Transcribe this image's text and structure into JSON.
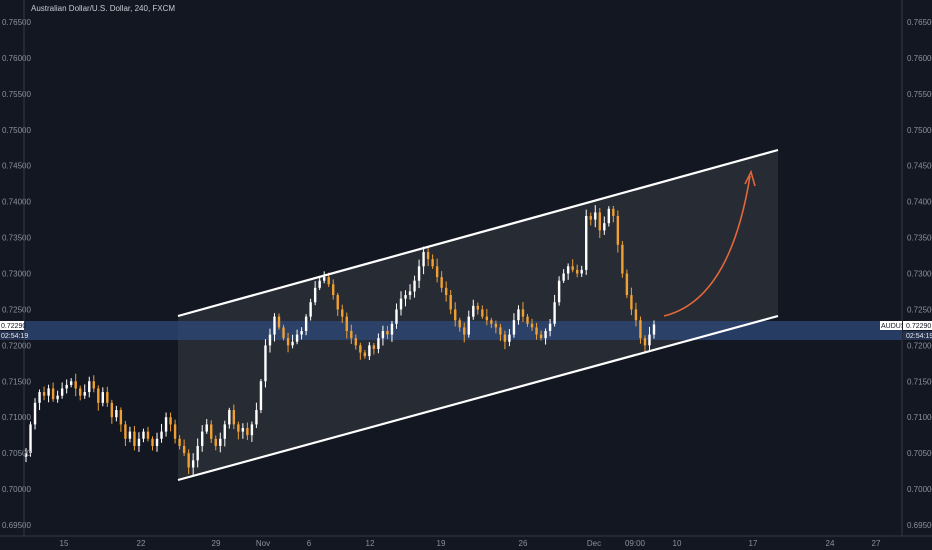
{
  "chart_data": {
    "type": "candlestick",
    "title": "Australian Dollar/U.S. Dollar, 240, FXCM",
    "symbol": "AUDUSD",
    "current_price": "0.72290",
    "countdown": "02:54:19",
    "y_ticks": [
      "0.76500",
      "0.76000",
      "0.75500",
      "0.75000",
      "0.74500",
      "0.74000",
      "0.73500",
      "0.73000",
      "0.72500",
      "0.72000",
      "0.71500",
      "0.71000",
      "0.70500",
      "0.70000",
      "0.69500"
    ],
    "ylim": [
      0.695,
      0.765
    ],
    "x_ticks": [
      "15",
      "22",
      "29",
      "Nov",
      "6",
      "12",
      "19",
      "26",
      "Dec",
      "09:00",
      "10",
      "17",
      "24",
      "27"
    ],
    "grid": false,
    "colors": {
      "background": "#131722",
      "up": "#ffffff",
      "down": "#f0a033",
      "channel_line": "#ffffff",
      "channel_fill": "#2a2d36",
      "highlight_band": "#2f4a7a",
      "arrow": "#e2673a",
      "axis_text": "#8c909b"
    },
    "price_path": [
      [
        0.705,
        0.709,
        0.712,
        0.7135,
        0.713,
        0.714,
        0.7125,
        0.713,
        0.714,
        0.7145,
        0.715,
        0.714,
        0.713,
        0.7135,
        0.715,
        0.714,
        0.712,
        0.7135,
        0.712,
        0.71,
        0.711,
        0.709,
        0.707,
        0.708,
        0.706,
        0.707,
        0.708,
        0.707,
        0.706,
        0.707
      ],
      [
        0.708,
        0.71,
        0.709,
        0.707,
        0.706,
        0.705,
        0.703,
        0.704,
        0.706,
        0.708,
        0.709,
        0.707,
        0.706,
        0.707,
        0.709,
        0.711,
        0.709,
        0.708,
        0.7085,
        0.7075,
        0.709,
        0.711,
        0.715,
        0.72,
        0.7215,
        0.724,
        0.7225,
        0.721,
        0.72,
        0.7205
      ],
      [
        0.7215,
        0.722,
        0.724,
        0.726,
        0.728,
        0.729,
        0.7295,
        0.7285,
        0.727,
        0.725,
        0.724,
        0.722,
        0.721,
        0.72,
        0.719,
        0.7185,
        0.72,
        0.7195,
        0.721,
        0.722,
        0.7215,
        0.723,
        0.725,
        0.7265,
        0.727,
        0.7275,
        0.729,
        0.731,
        0.733,
        0.732
      ],
      [
        0.731,
        0.7295,
        0.728,
        0.727,
        0.725,
        0.7235,
        0.7225,
        0.7215,
        0.724,
        0.7255,
        0.725,
        0.724,
        0.7235,
        0.723,
        0.7225,
        0.7215,
        0.7205,
        0.7215,
        0.7235,
        0.725,
        0.724,
        0.723,
        0.7225,
        0.7215,
        0.721,
        0.722,
        0.723,
        0.726,
        0.729,
        0.73
      ],
      [
        0.731,
        0.7305,
        0.73,
        0.7305,
        0.738,
        0.7375,
        0.7385,
        0.736,
        0.737,
        0.739,
        0.738,
        0.734,
        0.73,
        0.727,
        0.725,
        0.7235,
        0.721,
        0.72,
        0.7215,
        0.7229
      ]
    ],
    "channel": {
      "upper": [
        [
          "Oct 25",
          0.7243
        ],
        [
          "Dec 19",
          0.7471
        ]
      ],
      "lower": [
        [
          "Oct 25",
          0.7013
        ],
        [
          "Dec 19",
          0.7244
        ]
      ]
    },
    "projection_arrow": {
      "from": [
        "Dec 10",
        0.7227
      ],
      "to": [
        "Dec 17",
        0.7441
      ]
    }
  }
}
